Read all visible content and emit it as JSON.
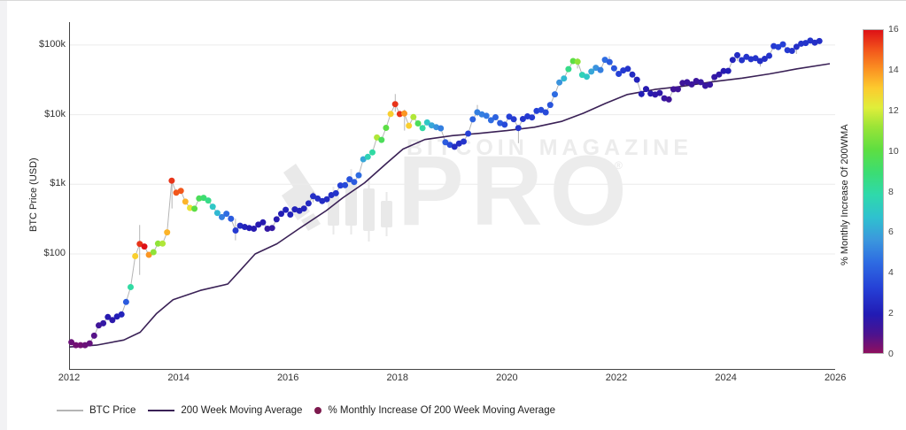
{
  "chart": {
    "y_axis_title": "BTC Price (USD)",
    "y_ticks": [
      {
        "label": "$100k",
        "value": 100000
      },
      {
        "label": "$10k",
        "value": 10000
      },
      {
        "label": "$1k",
        "value": 1000
      },
      {
        "label": "$100",
        "value": 100
      }
    ],
    "x_ticks": [
      {
        "label": "2012",
        "year": 2012
      },
      {
        "label": "2014",
        "year": 2014
      },
      {
        "label": "2016",
        "year": 2016
      },
      {
        "label": "2018",
        "year": 2018
      },
      {
        "label": "2020",
        "year": 2020
      },
      {
        "label": "2022",
        "year": 2022
      },
      {
        "label": "2024",
        "year": 2024
      },
      {
        "label": "2026",
        "year": 2026
      }
    ],
    "watermark": {
      "brand": "BITCOIN MAGAZINE",
      "product": "PRO",
      "registered": "®"
    },
    "legend": {
      "items": [
        {
          "label": "BTC Price",
          "swatch": "line",
          "color": "#b5b5b5"
        },
        {
          "label": "200 Week Moving Average",
          "swatch": "line",
          "color": "#3a2156"
        },
        {
          "label": "% Monthly Increase Of 200 Week Moving Average",
          "swatch": "dot",
          "color": "#7d1a4e"
        }
      ]
    },
    "colorbar": {
      "title": "% Monthly Increase Of 200WMA",
      "min": 0,
      "max": 16,
      "ticks": [
        0,
        2,
        4,
        6,
        8,
        10,
        12,
        14,
        16
      ],
      "stops": [
        {
          "t": 0.0,
          "color": "#8f0f5e"
        },
        {
          "t": 0.06,
          "color": "#4a1390"
        },
        {
          "t": 0.12,
          "color": "#221bb4"
        },
        {
          "t": 0.2,
          "color": "#2540d6"
        },
        {
          "t": 0.28,
          "color": "#2e6be2"
        },
        {
          "t": 0.35,
          "color": "#3b97dd"
        },
        {
          "t": 0.42,
          "color": "#2fc1cf"
        },
        {
          "t": 0.49,
          "color": "#2fd9ab"
        },
        {
          "t": 0.56,
          "color": "#3cdd72"
        },
        {
          "t": 0.63,
          "color": "#5ede41"
        },
        {
          "t": 0.7,
          "color": "#9ae437"
        },
        {
          "t": 0.76,
          "color": "#e0ee3a"
        },
        {
          "t": 0.82,
          "color": "#fccb2e"
        },
        {
          "t": 0.88,
          "color": "#fb9122"
        },
        {
          "t": 0.94,
          "color": "#f2541b"
        },
        {
          "t": 1.0,
          "color": "#de1116"
        }
      ]
    }
  },
  "chart_data": {
    "type": "scatter",
    "title": "",
    "xlabel": "",
    "ylabel": "BTC Price (USD)",
    "x_range_years": [
      2012,
      2026
    ],
    "y_scale": "log",
    "y_range_usd": [
      2.2,
      220000
    ],
    "grid": "horizontal-decades",
    "legend_position": "bottom-left",
    "colorbar_label": "% Monthly Increase Of 200WMA",
    "colorbar_range": [
      0,
      16
    ],
    "btc_monthly": {
      "start": "2012-01",
      "note": "monthly BTC close USD; pct = % monthly increase of 200-week moving average (maps to dot color)",
      "prices": [
        5.4,
        4.9,
        4.9,
        4.9,
        5.2,
        6.7,
        9.4,
        10.1,
        12.4,
        11.2,
        12.6,
        13.5,
        20.4,
        33.4,
        93,
        139,
        128,
        97,
        106,
        141,
        141,
        204,
        1126,
        757,
        805,
        563,
        458,
        446,
        627,
        640,
        585,
        477,
        387,
        338,
        378,
        320,
        217,
        254,
        244,
        236,
        230,
        263,
        284,
        230,
        236,
        314,
        377,
        430,
        368,
        437,
        416,
        448,
        531,
        673,
        624,
        575,
        610,
        700,
        745,
        964,
        970,
        1180,
        1080,
        1347,
        2286,
        2480,
        2875,
        4703,
        4338,
        6468,
        10233,
        14156,
        10221,
        10397,
        6938,
        9240,
        7494,
        6404,
        7735,
        7011,
        6626,
        6371,
        4017,
        3689,
        3457,
        3854,
        4105,
        5350,
        8574,
        10817,
        10085,
        9630,
        8308,
        9199,
        7569,
        7193,
        9350,
        8599,
        6438,
        8658,
        9461,
        9137,
        11323,
        11680,
        10784,
        13781,
        19625,
        28996,
        33114,
        45137,
        58918,
        57750,
        37332,
        35040,
        41626,
        47166,
        43790,
        61318,
        57005,
        46306,
        38483,
        43193,
        45538,
        37630,
        31792,
        19784,
        23336,
        20049,
        19431,
        20495,
        17168,
        16547,
        23139,
        23147,
        28478,
        29268,
        27219,
        30477,
        29230,
        25931,
        26967,
        34667,
        37712,
        42265,
        42580,
        61198,
        71333,
        60636,
        67491,
        62678,
        64619,
        58969,
        63329,
        70215,
        96449,
        93429,
        102405,
        84373,
        82548,
        94207,
        104600,
        107100,
        115800,
        108200,
        114000
      ],
      "pct": [
        0.5,
        0.4,
        0.4,
        0.5,
        0.6,
        0.8,
        1.2,
        1.5,
        1.8,
        1.7,
        2.0,
        2.2,
        4,
        8,
        13,
        15.5,
        16,
        14,
        11,
        11,
        11.5,
        13.5,
        15.5,
        15,
        15,
        13.5,
        12.5,
        10,
        9.5,
        9,
        8.5,
        7,
        6.5,
        5,
        4.5,
        4,
        3,
        2.5,
        2.2,
        2,
        1.8,
        1.8,
        1.8,
        1.5,
        1.5,
        1.8,
        2,
        2.2,
        2.2,
        2.2,
        2.2,
        2.2,
        2.4,
        2.6,
        2.6,
        2.5,
        2.5,
        2.6,
        2.8,
        3.2,
        3.5,
        3.8,
        4,
        4.5,
        6,
        7.5,
        8,
        11.5,
        9.5,
        10,
        13,
        15.5,
        15.5,
        14,
        13,
        11.5,
        9.5,
        8,
        7,
        6,
        5.5,
        5,
        4,
        3.5,
        2.5,
        2.5,
        2.8,
        3.2,
        4.2,
        5,
        5,
        4.8,
        4.5,
        4.2,
        4,
        3.5,
        3.2,
        3,
        2.8,
        2.8,
        3,
        3,
        3.2,
        3.5,
        3.5,
        3.8,
        4.5,
        5.5,
        6.5,
        8.5,
        10,
        11,
        7.5,
        7,
        6,
        5.5,
        5,
        4.5,
        4,
        3.8,
        3.2,
        3,
        2.8,
        2.5,
        2.2,
        2,
        1.8,
        1.8,
        1.6,
        1.6,
        1.4,
        1.2,
        1.2,
        1.2,
        1.2,
        1.3,
        1.3,
        1.3,
        1.4,
        1.4,
        1.4,
        1.5,
        1.6,
        1.8,
        2,
        2.2,
        2.5,
        2.8,
        2.8,
        2.8,
        2.8,
        2.6,
        2.6,
        2.8,
        3,
        3.2,
        3.2,
        3,
        2.8,
        2.6,
        2.8,
        2.8,
        2.8,
        2.6,
        2.6
      ]
    },
    "wma_200week": [
      [
        2012.0,
        4.6
      ],
      [
        2012.5,
        4.9
      ],
      [
        2013.0,
        5.8
      ],
      [
        2013.3,
        7.5
      ],
      [
        2013.6,
        14
      ],
      [
        2013.9,
        22
      ],
      [
        2014.4,
        30
      ],
      [
        2014.9,
        37
      ],
      [
        2015.1,
        55
      ],
      [
        2015.4,
        100
      ],
      [
        2015.8,
        140
      ],
      [
        2016.2,
        230
      ],
      [
        2016.7,
        420
      ],
      [
        2017.0,
        640
      ],
      [
        2017.4,
        1050
      ],
      [
        2017.8,
        2000
      ],
      [
        2018.1,
        3200
      ],
      [
        2018.5,
        4400
      ],
      [
        2019.0,
        5000
      ],
      [
        2019.5,
        5400
      ],
      [
        2020.0,
        5900
      ],
      [
        2020.5,
        6600
      ],
      [
        2021.0,
        8000
      ],
      [
        2021.4,
        10500
      ],
      [
        2021.8,
        14500
      ],
      [
        2022.2,
        19500
      ],
      [
        2022.7,
        23000
      ],
      [
        2023.2,
        25500
      ],
      [
        2023.8,
        30000
      ],
      [
        2024.3,
        33500
      ],
      [
        2024.8,
        38500
      ],
      [
        2025.3,
        45500
      ],
      [
        2025.9,
        54000
      ]
    ],
    "wicks": [
      [
        2013.29,
        50,
        260
      ],
      [
        2013.88,
        450,
        1240
      ],
      [
        2015.04,
        157,
        320
      ],
      [
        2016.46,
        550,
        780
      ],
      [
        2017.96,
        11000,
        19800
      ],
      [
        2018.13,
        5900,
        11800
      ],
      [
        2019.46,
        9500,
        13800
      ],
      [
        2020.21,
        3900,
        6800
      ],
      [
        2021.29,
        46000,
        64800
      ],
      [
        2021.87,
        53000,
        69000
      ],
      [
        2022.46,
        17600,
        22000
      ],
      [
        2024.21,
        59000,
        73800
      ],
      [
        2024.63,
        49000,
        60000
      ],
      [
        2025.29,
        74500,
        88000
      ]
    ]
  }
}
